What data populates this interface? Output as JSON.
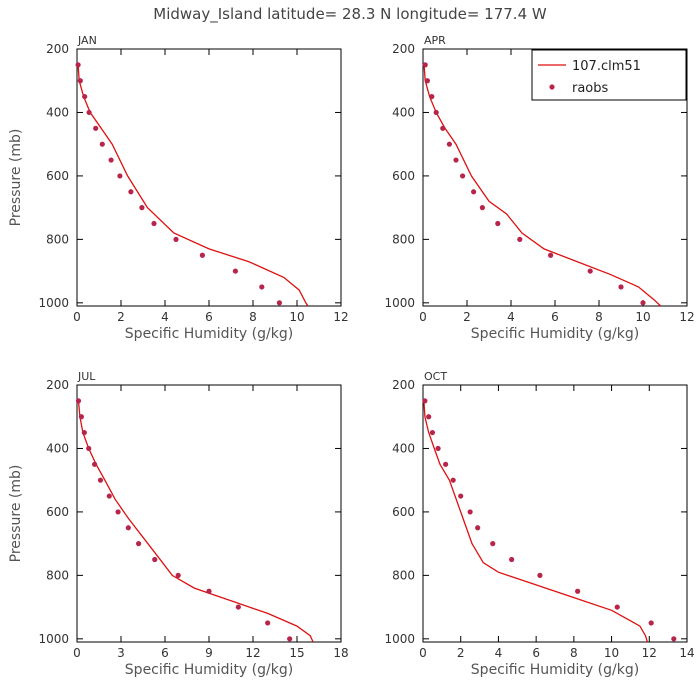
{
  "figure": {
    "title": "Midway_Island  latitude= 28.3 N longitude= 177.4 W"
  },
  "colors": {
    "model_line": "#dd1111",
    "obs_marker": "#b8254a",
    "frame": "#000000",
    "text": "#444444"
  },
  "legend": {
    "model_label": "107.clm51",
    "obs_label": "raobs",
    "placement": "top-right of APR panel"
  },
  "chart_data": [
    {
      "type": "line",
      "panel_label": "JAN",
      "xlabel": "Specific Humidity (g/kg)",
      "ylabel": "Pressure (mb)",
      "xlim": [
        0,
        12
      ],
      "xticks": [
        0,
        2,
        4,
        6,
        8,
        10,
        12
      ],
      "ylim": [
        1010,
        200
      ],
      "yticks": [
        200,
        400,
        600,
        800,
        1000
      ],
      "series": [
        {
          "name": "107.clm51",
          "kind": "line",
          "x": [
            0.05,
            0.1,
            0.3,
            0.6,
            1.1,
            1.6,
            2.3,
            3.2,
            4.4,
            6.0,
            7.8,
            9.4,
            10.1,
            10.4,
            10.5
          ],
          "y": [
            250,
            300,
            350,
            400,
            450,
            500,
            600,
            700,
            780,
            830,
            870,
            920,
            960,
            1000,
            1010
          ]
        },
        {
          "name": "raobs",
          "kind": "scatter",
          "x": [
            0.05,
            0.15,
            0.35,
            0.55,
            0.85,
            1.15,
            1.55,
            1.95,
            2.45,
            2.95,
            3.5,
            4.5,
            5.7,
            7.2,
            8.4,
            9.2
          ],
          "y": [
            250,
            300,
            350,
            400,
            450,
            500,
            550,
            600,
            650,
            700,
            750,
            800,
            850,
            900,
            950,
            1000
          ]
        }
      ]
    },
    {
      "type": "line",
      "panel_label": "APR",
      "xlabel": "Specific Humidity (g/kg)",
      "ylabel": "",
      "xlim": [
        0,
        12
      ],
      "xticks": [
        0,
        2,
        4,
        6,
        8,
        10,
        12
      ],
      "ylim": [
        1010,
        200
      ],
      "yticks": [
        200,
        400,
        600,
        800,
        1000
      ],
      "series": [
        {
          "name": "107.clm51",
          "kind": "line",
          "x": [
            0.05,
            0.1,
            0.3,
            0.6,
            1.0,
            1.5,
            2.2,
            3.0,
            3.8,
            4.5,
            5.5,
            7.0,
            8.5,
            9.8,
            10.5,
            10.8
          ],
          "y": [
            250,
            300,
            350,
            400,
            450,
            500,
            600,
            680,
            720,
            780,
            830,
            870,
            910,
            950,
            990,
            1010
          ]
        },
        {
          "name": "raobs",
          "kind": "scatter",
          "x": [
            0.1,
            0.2,
            0.4,
            0.6,
            0.9,
            1.2,
            1.5,
            1.8,
            2.3,
            2.7,
            3.4,
            4.4,
            5.8,
            7.6,
            9.0,
            10.0
          ],
          "y": [
            250,
            300,
            350,
            400,
            450,
            500,
            550,
            600,
            650,
            700,
            750,
            800,
            850,
            900,
            950,
            1000
          ]
        }
      ]
    },
    {
      "type": "line",
      "panel_label": "JUL",
      "xlabel": "Specific Humidity (g/kg)",
      "ylabel": "Pressure (mb)",
      "xlim": [
        0,
        18
      ],
      "xticks": [
        0,
        3,
        6,
        9,
        12,
        15,
        18
      ],
      "ylim": [
        1010,
        200
      ],
      "yticks": [
        200,
        400,
        600,
        800,
        1000
      ],
      "series": [
        {
          "name": "107.clm51",
          "kind": "line",
          "x": [
            0.1,
            0.2,
            0.4,
            0.8,
            1.3,
            1.9,
            2.6,
            3.5,
            4.5,
            5.5,
            6.5,
            8.0,
            10.5,
            13.0,
            15.0,
            15.9,
            16.1
          ],
          "y": [
            250,
            300,
            350,
            400,
            450,
            500,
            560,
            620,
            680,
            740,
            800,
            840,
            880,
            920,
            960,
            990,
            1010
          ]
        },
        {
          "name": "raobs",
          "kind": "scatter",
          "x": [
            0.1,
            0.3,
            0.5,
            0.8,
            1.2,
            1.6,
            2.2,
            2.8,
            3.5,
            4.2,
            5.3,
            6.9,
            9.0,
            11.0,
            13.0,
            14.5
          ],
          "y": [
            250,
            300,
            350,
            400,
            450,
            500,
            550,
            600,
            650,
            700,
            750,
            800,
            850,
            900,
            950,
            1000
          ]
        }
      ]
    },
    {
      "type": "line",
      "panel_label": "OCT",
      "xlabel": "Specific Humidity (g/kg)",
      "ylabel": "",
      "xlim": [
        0,
        14
      ],
      "xticks": [
        0,
        2,
        4,
        6,
        8,
        10,
        12,
        14
      ],
      "ylim": [
        1010,
        200
      ],
      "yticks": [
        200,
        400,
        600,
        800,
        1000
      ],
      "series": [
        {
          "name": "107.clm51",
          "kind": "line",
          "x": [
            0.05,
            0.1,
            0.3,
            0.6,
            0.9,
            1.4,
            2.0,
            2.6,
            3.2,
            4.0,
            6.0,
            8.0,
            10.0,
            11.5,
            11.8,
            11.9
          ],
          "y": [
            250,
            300,
            350,
            400,
            450,
            500,
            600,
            700,
            760,
            790,
            830,
            870,
            910,
            960,
            990,
            1010
          ]
        },
        {
          "name": "raobs",
          "kind": "scatter",
          "x": [
            0.1,
            0.3,
            0.5,
            0.8,
            1.2,
            1.6,
            2.0,
            2.5,
            2.9,
            3.7,
            4.7,
            6.2,
            8.2,
            10.3,
            12.1,
            13.3
          ],
          "y": [
            250,
            300,
            350,
            400,
            450,
            500,
            550,
            600,
            650,
            700,
            750,
            800,
            850,
            900,
            950,
            1000
          ]
        }
      ]
    }
  ]
}
